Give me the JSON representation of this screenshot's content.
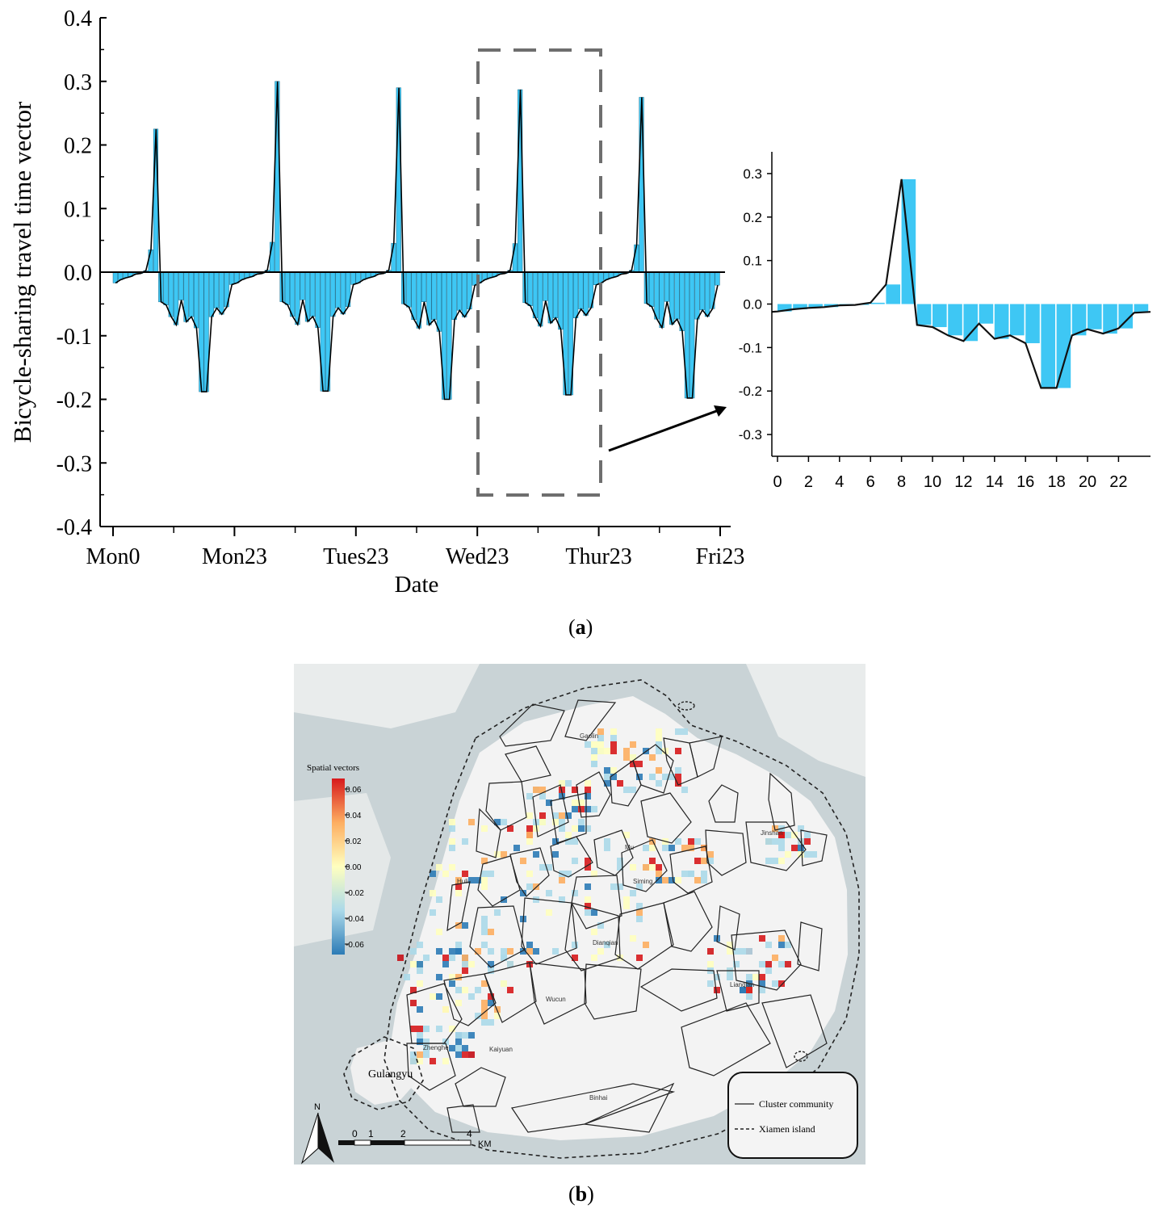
{
  "chart_data": [
    {
      "type": "bar",
      "panel": "a-main",
      "title": "",
      "xlabel": "Date",
      "ylabel": "Bicycle-sharing travel time vector",
      "ylim": [
        -0.4,
        0.4
      ],
      "yticks": [
        "0.4",
        "0.3",
        "0.2",
        "0.1",
        "0.0",
        "-0.1",
        "-0.2",
        "-0.3",
        "-0.4"
      ],
      "xticklabels": [
        "Mon0",
        "Mon23",
        "Tues23",
        "Wed23",
        "Thur23",
        "Fri23"
      ],
      "hours_per_day": 24,
      "days": 5,
      "daily_profile": [
        -0.017,
        -0.012,
        -0.009,
        -0.007,
        -0.003,
        -0.002,
        0.003,
        0.045,
        0.287,
        -0.048,
        -0.053,
        -0.072,
        -0.085,
        -0.045,
        -0.08,
        -0.072,
        -0.09,
        -0.193,
        -0.193,
        -0.072,
        -0.058,
        -0.068,
        -0.056,
        -0.02
      ],
      "daily_peaks": [
        0.225,
        0.3,
        0.29,
        0.287,
        0.275
      ],
      "daily_troughs": [
        -0.188,
        -0.187,
        -0.2,
        -0.193,
        -0.198
      ],
      "bar_color": "#3ec7f4",
      "highlight_box_days": [
        3
      ]
    },
    {
      "type": "bar",
      "panel": "a-inset",
      "title": "",
      "xlabel": "",
      "ylabel": "",
      "ylim": [
        -0.35,
        0.35
      ],
      "yticks": [
        "0.3",
        "0.2",
        "0.1",
        "0.0",
        "-0.1",
        "-0.2",
        "-0.3"
      ],
      "xticklabels": [
        "0",
        "2",
        "4",
        "6",
        "8",
        "10",
        "12",
        "14",
        "16",
        "18",
        "20",
        "22"
      ],
      "categories": [
        0,
        1,
        2,
        3,
        4,
        5,
        6,
        7,
        8,
        9,
        10,
        11,
        12,
        13,
        14,
        15,
        16,
        17,
        18,
        19,
        20,
        21,
        22,
        23
      ],
      "values": [
        -0.017,
        -0.012,
        -0.009,
        -0.007,
        -0.003,
        -0.002,
        0.003,
        0.045,
        0.287,
        -0.048,
        -0.053,
        -0.072,
        -0.085,
        -0.045,
        -0.08,
        -0.072,
        -0.09,
        -0.193,
        -0.193,
        -0.072,
        -0.058,
        -0.068,
        -0.056,
        -0.02
      ],
      "bar_color": "#3ec7f4"
    }
  ],
  "captions": {
    "a": "a",
    "b": "b"
  },
  "map": {
    "legend_title": "Spatial vectors",
    "colorbar_ticks": [
      "0.06",
      "0.04",
      "0.02",
      "0.00",
      "-0.02",
      "-0.04",
      "-0.06"
    ],
    "colorbar_colors": [
      "#d7191c",
      "#fdae61",
      "#ffffbf",
      "#abd9e9",
      "#2c7bb6"
    ],
    "place_labels": [
      "Gulangyu",
      "Huli",
      "Jinshan",
      "Lianqian",
      "Siming",
      "Kaiyuan",
      "Binhai",
      "Zhenghe",
      "Dianqian",
      "Wucun",
      "Gaolin",
      "Mu"
    ],
    "key": {
      "solid": "Cluster community",
      "dashed": "Xiamen island"
    },
    "north": "N",
    "scale": {
      "ticks": [
        "0",
        "1",
        "2",
        "4"
      ],
      "unit": "KM"
    }
  }
}
